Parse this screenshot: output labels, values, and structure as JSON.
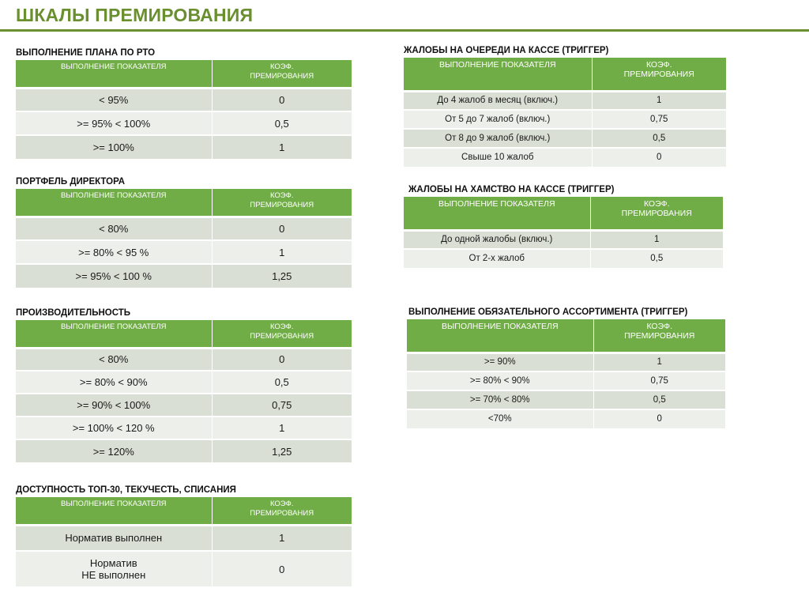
{
  "title": "ШКАЛЫ ПРЕМИРОВАНИЯ",
  "tables": {
    "plan": {
      "title": "ВЫПОЛНЕНИЕ  ПЛАНА  ПО  РТО",
      "col1": "ВЫПОЛНЕНИЕ ПОКАЗАТЕЛЯ",
      "col2": "КОЭФ.\nПРЕМИРОВАНИЯ",
      "rows": [
        {
          "range": "< 95%",
          "coef": "0"
        },
        {
          "range": ">= 95% < 100%",
          "coef": "0,5"
        },
        {
          "range": ">= 100%",
          "coef": "1"
        }
      ]
    },
    "portfolio": {
      "title": "ПОРТФЕЛЬ ДИРЕКТОРА",
      "col1": "ВЫПОЛНЕНИЕ ПОКАЗАТЕЛЯ",
      "col2": "КОЭФ.\nПРЕМИРОВАНИЯ",
      "rows": [
        {
          "range": "< 80%",
          "coef": "0"
        },
        {
          "range": ">= 80% < 95 %",
          "coef": "1"
        },
        {
          "range": ">= 95% < 100 %",
          "coef": "1,25"
        }
      ]
    },
    "productivity": {
      "title": "ПРОИЗВОДИТЕЛЬНОСТЬ",
      "col1": "ВЫПОЛНЕНИЕ ПОКАЗАТЕЛЯ",
      "col2": "КОЭФ.\nПРЕМИРОВАНИЯ",
      "rows": [
        {
          "range": "< 80%",
          "coef": "0"
        },
        {
          "range": ">= 80% < 90%",
          "coef": "0,5"
        },
        {
          "range": ">= 90% < 100%",
          "coef": "0,75"
        },
        {
          "range": ">= 100% < 120 %",
          "coef": "1"
        },
        {
          "range": ">= 120%",
          "coef": "1,25"
        }
      ]
    },
    "top30": {
      "title": "ДОСТУПНОСТЬ ТОП-30,  ТЕКУЧЕСТЬ,  СПИСАНИЯ",
      "col1": "ВЫПОЛНЕНИЕ ПОКАЗАТЕЛЯ",
      "col2": "КОЭФ.\nПРЕМИРОВАНИЯ",
      "rows": [
        {
          "range": "Норматив выполнен",
          "coef": "1"
        },
        {
          "range": "Норматив\nНЕ выполнен",
          "coef": "0"
        }
      ]
    },
    "queue": {
      "title": "ЖАЛОБЫ НА ОЧЕРЕДИ НА КАССЕ (ТРИГГЕР)",
      "col1": "ВЫПОЛНЕНИЕ ПОКАЗАТЕЛЯ",
      "col2": "КОЭФ.\nПРЕМИРОВАНИЯ",
      "rows": [
        {
          "range": "До 4 жалоб в месяц (включ.)",
          "coef": "1"
        },
        {
          "range": "От 5 до 7 жалоб (включ.)",
          "coef": "0,75"
        },
        {
          "range": "От 8 до 9 жалоб (включ.)",
          "coef": "0,5"
        },
        {
          "range": "Свыше 10 жалоб",
          "coef": "0"
        }
      ]
    },
    "rudeness": {
      "title": "ЖАЛОБЫ НА ХАМСТВО НА КАССЕ (ТРИГГЕР)",
      "col1": "ВЫПОЛНЕНИЕ ПОКАЗАТЕЛЯ",
      "col2": "КОЭФ.\nПРЕМИРОВАНИЯ",
      "rows": [
        {
          "range": "До одной жалобы (включ.)",
          "coef": "1"
        },
        {
          "range": "От 2-х жалоб",
          "coef": "0,5"
        }
      ]
    },
    "assortment": {
      "title": "ВЫПОЛНЕНИЕ ОБЯЗАТЕЛЬНОГО АССОРТИМЕНТА (ТРИГГЕР)",
      "col1": "ВЫПОЛНЕНИЕ ПОКАЗАТЕЛЯ",
      "col2": "КОЭФ.\nПРЕМИРОВАНИЯ",
      "rows": [
        {
          "range": ">= 90%",
          "coef": "1"
        },
        {
          "range": ">= 80% < 90%",
          "coef": "0,75"
        },
        {
          "range": ">= 70% < 80%",
          "coef": "0,5"
        },
        {
          "range": "<70%",
          "coef": "0"
        }
      ]
    }
  }
}
